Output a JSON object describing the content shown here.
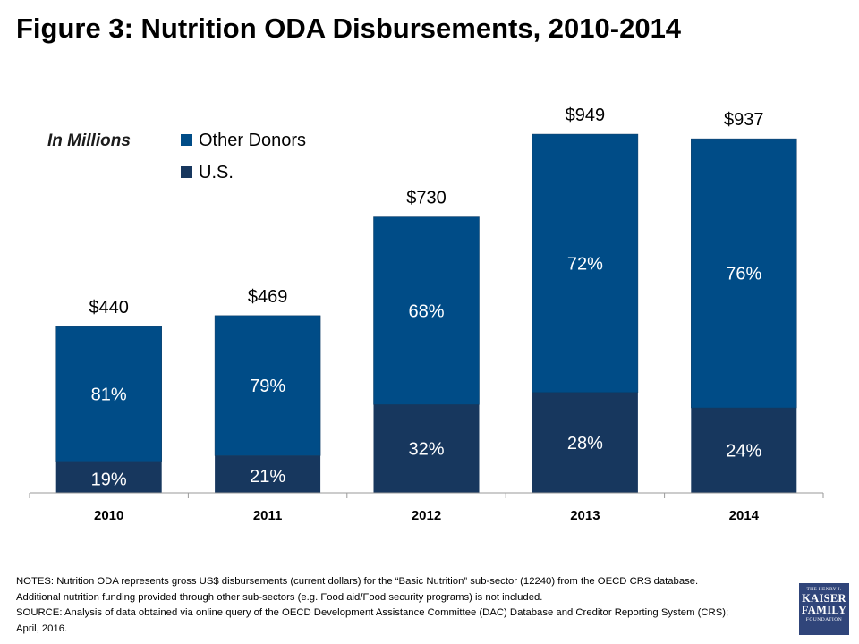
{
  "page": {
    "title": "Figure 3: Nutrition ODA Disbursements, 2010-2014"
  },
  "chart_data": {
    "type": "bar",
    "stacked": true,
    "title": "Figure 3: Nutrition ODA Disbursements, 2010-2014",
    "unit_label": "In Millions",
    "categories": [
      "2010",
      "2011",
      "2012",
      "2013",
      "2014"
    ],
    "totals": [
      440,
      469,
      730,
      949,
      937
    ],
    "total_labels": [
      "$440",
      "$469",
      "$730",
      "$949",
      "$937"
    ],
    "series": [
      {
        "name": "U.S.",
        "color": "#17375e",
        "percent_labels": [
          "19%",
          "21%",
          "32%",
          "28%",
          "24%"
        ],
        "share": [
          0.19,
          0.21,
          0.32,
          0.28,
          0.24
        ]
      },
      {
        "name": "Other Donors",
        "color": "#004c87",
        "percent_labels": [
          "81%",
          "79%",
          "68%",
          "72%",
          "76%"
        ],
        "share": [
          0.81,
          0.79,
          0.68,
          0.72,
          0.76
        ]
      }
    ],
    "legend": [
      "Other Donors",
      "U.S."
    ],
    "legend_position": "top-left",
    "ylim": [
      0,
      1000
    ],
    "grid": false
  },
  "notes": {
    "line1": "NOTES: Nutrition ODA represents gross US$ disbursements (current dollars) for the “Basic Nutrition” sub-sector (12240) from the OECD CRS database.",
    "line2": "Additional nutrition funding provided through other sub-sectors (e.g. Food aid/Food security programs) is not included.",
    "line3": "SOURCE: Analysis of data obtained via online query of the OECD Development Assistance Committee (DAC) Database and Creditor Reporting System (CRS);",
    "line4": "April, 2016."
  },
  "logo": {
    "top": "THE HENRY J.",
    "line1": "KAISER",
    "line2": "FAMILY",
    "bottom": "FOUNDATION"
  }
}
